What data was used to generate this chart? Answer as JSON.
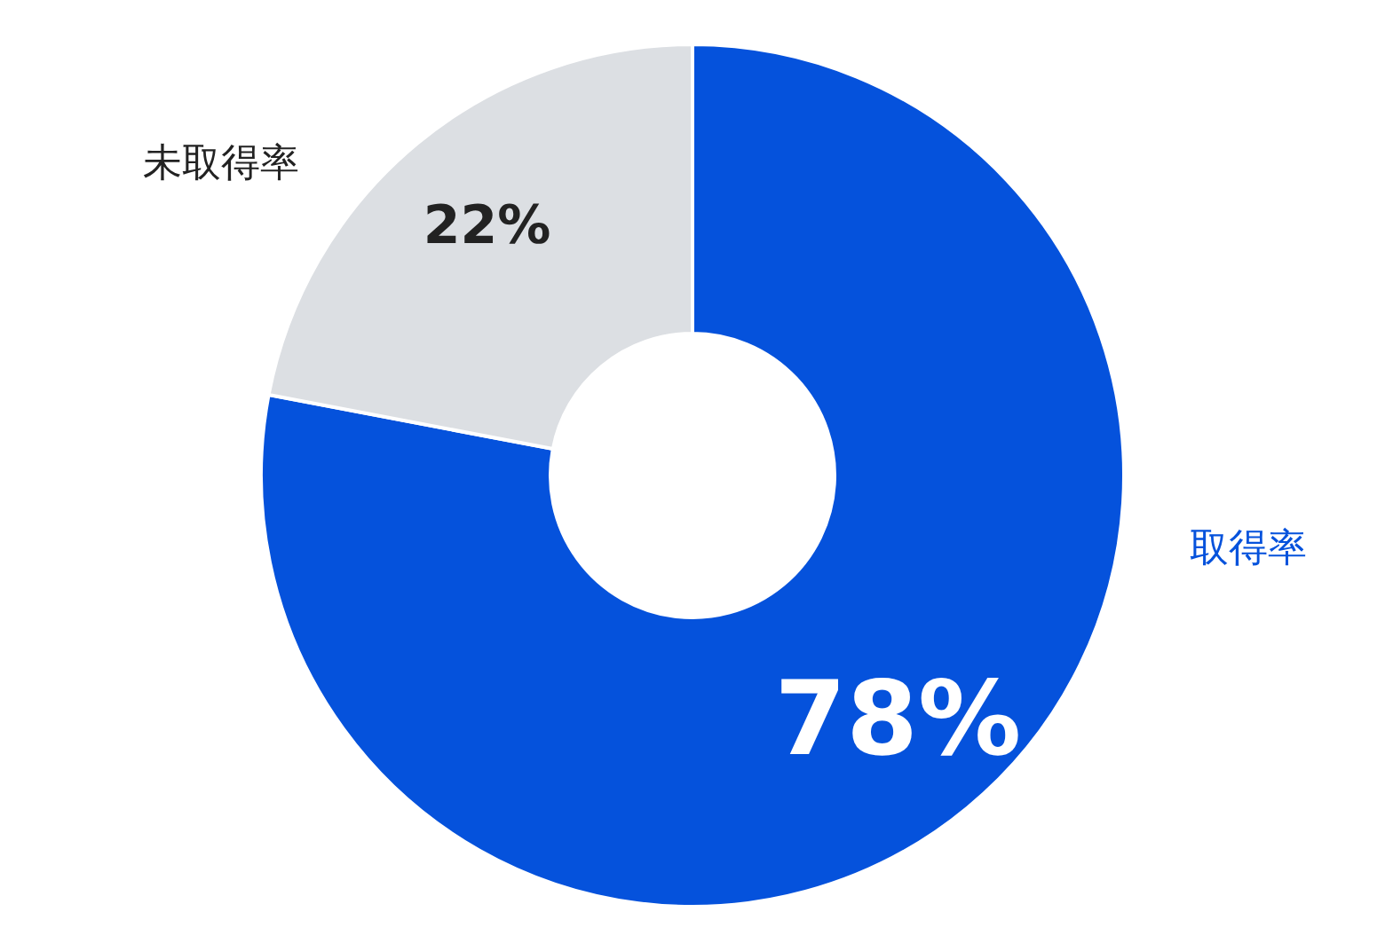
{
  "chart_data": {
    "type": "donut",
    "categories": [
      "取得率",
      "未取得率"
    ],
    "values": [
      78,
      22
    ],
    "colors": [
      "#0552dc",
      "#dcdfe3"
    ],
    "value_labels": [
      "78%",
      "22%"
    ]
  }
}
